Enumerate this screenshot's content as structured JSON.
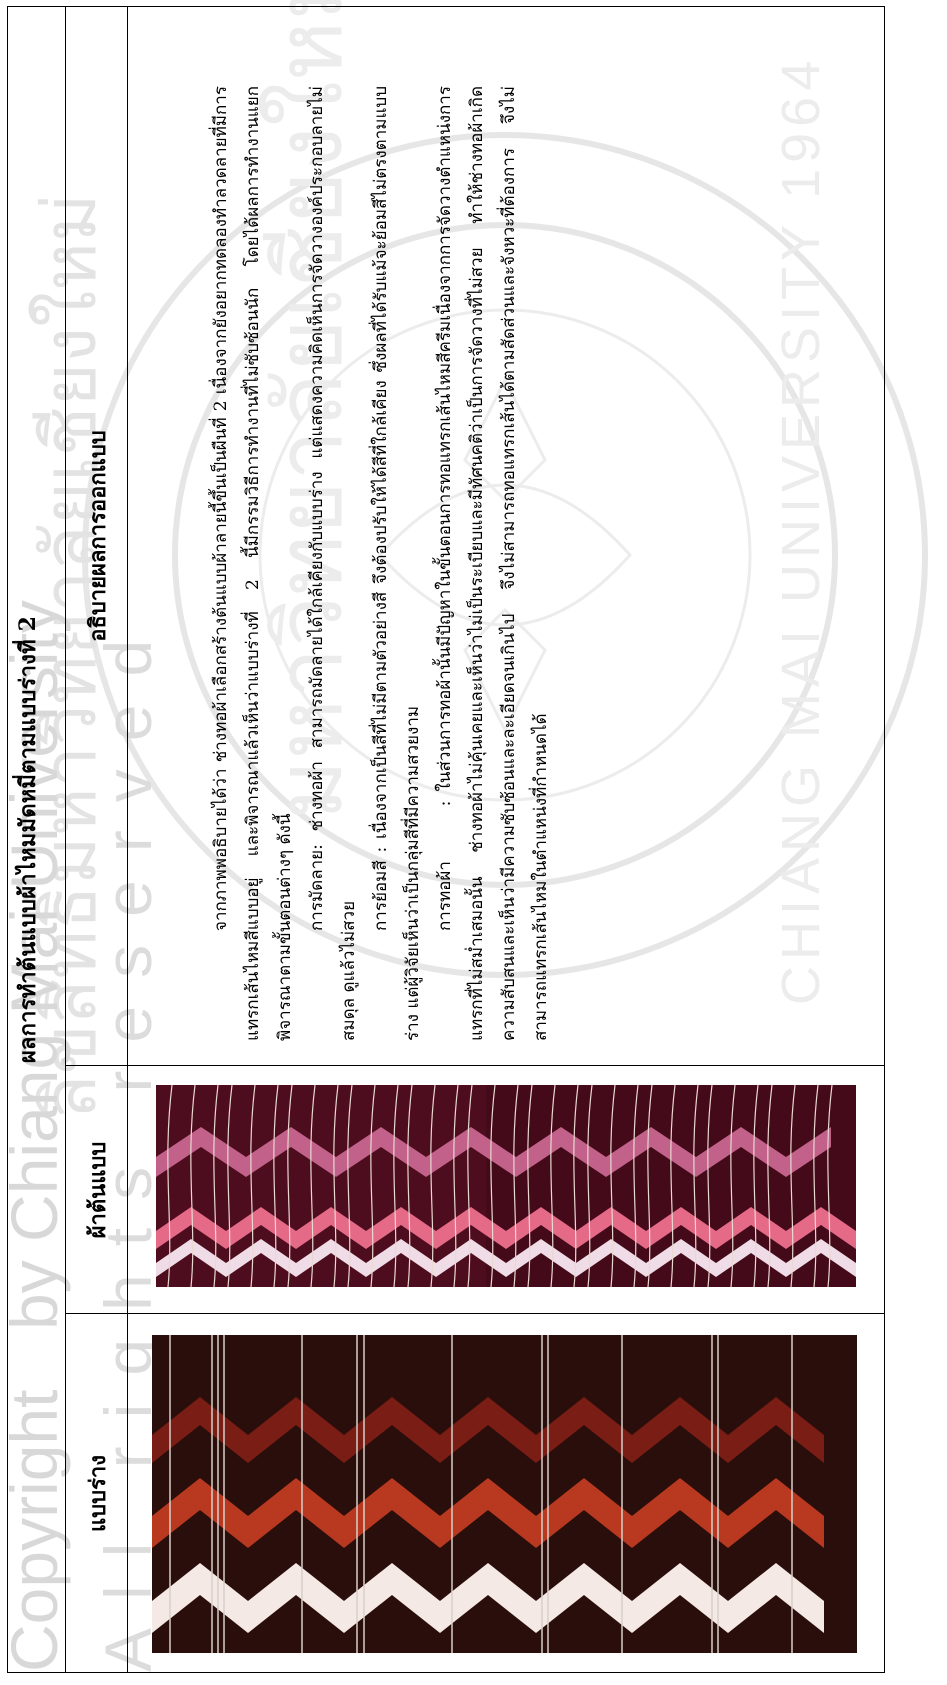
{
  "table": {
    "title": "ผลการทำต้นแบบผ้าไหมมัดหมี่ตามแบบร่างที่ 2",
    "columns": [
      "แบบร่าง",
      "ผ้าต้นแบบ",
      "อธิบายผลการออกแบบ"
    ]
  },
  "description": {
    "intro": "จากภาพพอธิบายได้ว่า ช่างทอผ้าเลือกสร้างต้นแบบผ้าลายนี้ขึ้นเป็นผืนที่ 2 เนื่องจากยังอยากทดลองทำลวดลายที่มีการแทรกเส้นไหมสีแบบอยู่ และพิจารณาแล้วเห็นว่าแบบร่างที่ 2 นี้มีกรรมวิธีการทำงานที่ไม่ซับซ้อนนัก โดยได้ผลการทำงานแยกพิจารณาตามขั้นตอนต่างๆ ดังนี้",
    "pattern": "การมัดลาย: ช่างทอผ้า สามารถมัดลายได้ใกล้เคียงกับแบบร่าง แต่แสดงความคิดเห็นการจัดวางองค์ประกอบลายไม่สมดุล ดูแล้วไม่สวย",
    "dye": "การย้อมสี : เนื่องจากเป็นสีที่ไม่มีตามตัวอย่างสี จึงต้องปรับให้ได้สีที่ใกล้เคียง ซึ่งผลที่ได้รับแม้จะย้อมสีไม่ตรงตามแบบร่าง แต่ผู้วิจัยเห็นว่าเป็นกลุ่มสีที่มีความสวยงาม",
    "weave_label": "การทอผ้า",
    "weave": ": ในส่วนการทอผ้านั้นมีปัญหาในขั้นตอนการทอแทรกเส้นไหมสีครีมเนื่องจากการจัดวางตำแหน่งการแทรกที่ไม่สม่ำเสมอนั้น ช่างทอผ้าไม่คุ้นเคยและเห็นว่าไม่เป็นระเบียบและมีทัศนคติว่าเป็นการจัดวางที่ไม่สวย ทำให้ช่างทอผ้าเกิดความสับสนและเห็นว่ามีความซับซ้อนและละเอียดจนเกินไป จึงไม่สามารถทอแทรกเส้นได้ตามสัดส่วนและจังหวะที่ต้องการ จึงไม่สามารถแทรกเส้นไหมในตำแหน่งที่กำหนดได้"
  },
  "watermark": {
    "seal_top": "มหาวิทยาลัยเชียงใหม่",
    "seal_arc": "CHIANG MAI UNIVERSITY 1964",
    "side_word": "ลิขสิทธิ์มหาวิทยาลัยเชียงใหม่",
    "copyright": "Copyright",
    "by_line": "by Chiang Mai University",
    "rights": "All rights reserved"
  },
  "colors": {
    "sketch_bg": "#2a0e0b",
    "sketch_red": "#7a1d14",
    "sketch_orange": "#b8391f",
    "sketch_white": "#f4e9e4",
    "fabric_bg": "#4e0d1e",
    "fabric_pink": "#c26189",
    "fabric_rose": "#e56a88",
    "fabric_white": "#f0dce6"
  }
}
